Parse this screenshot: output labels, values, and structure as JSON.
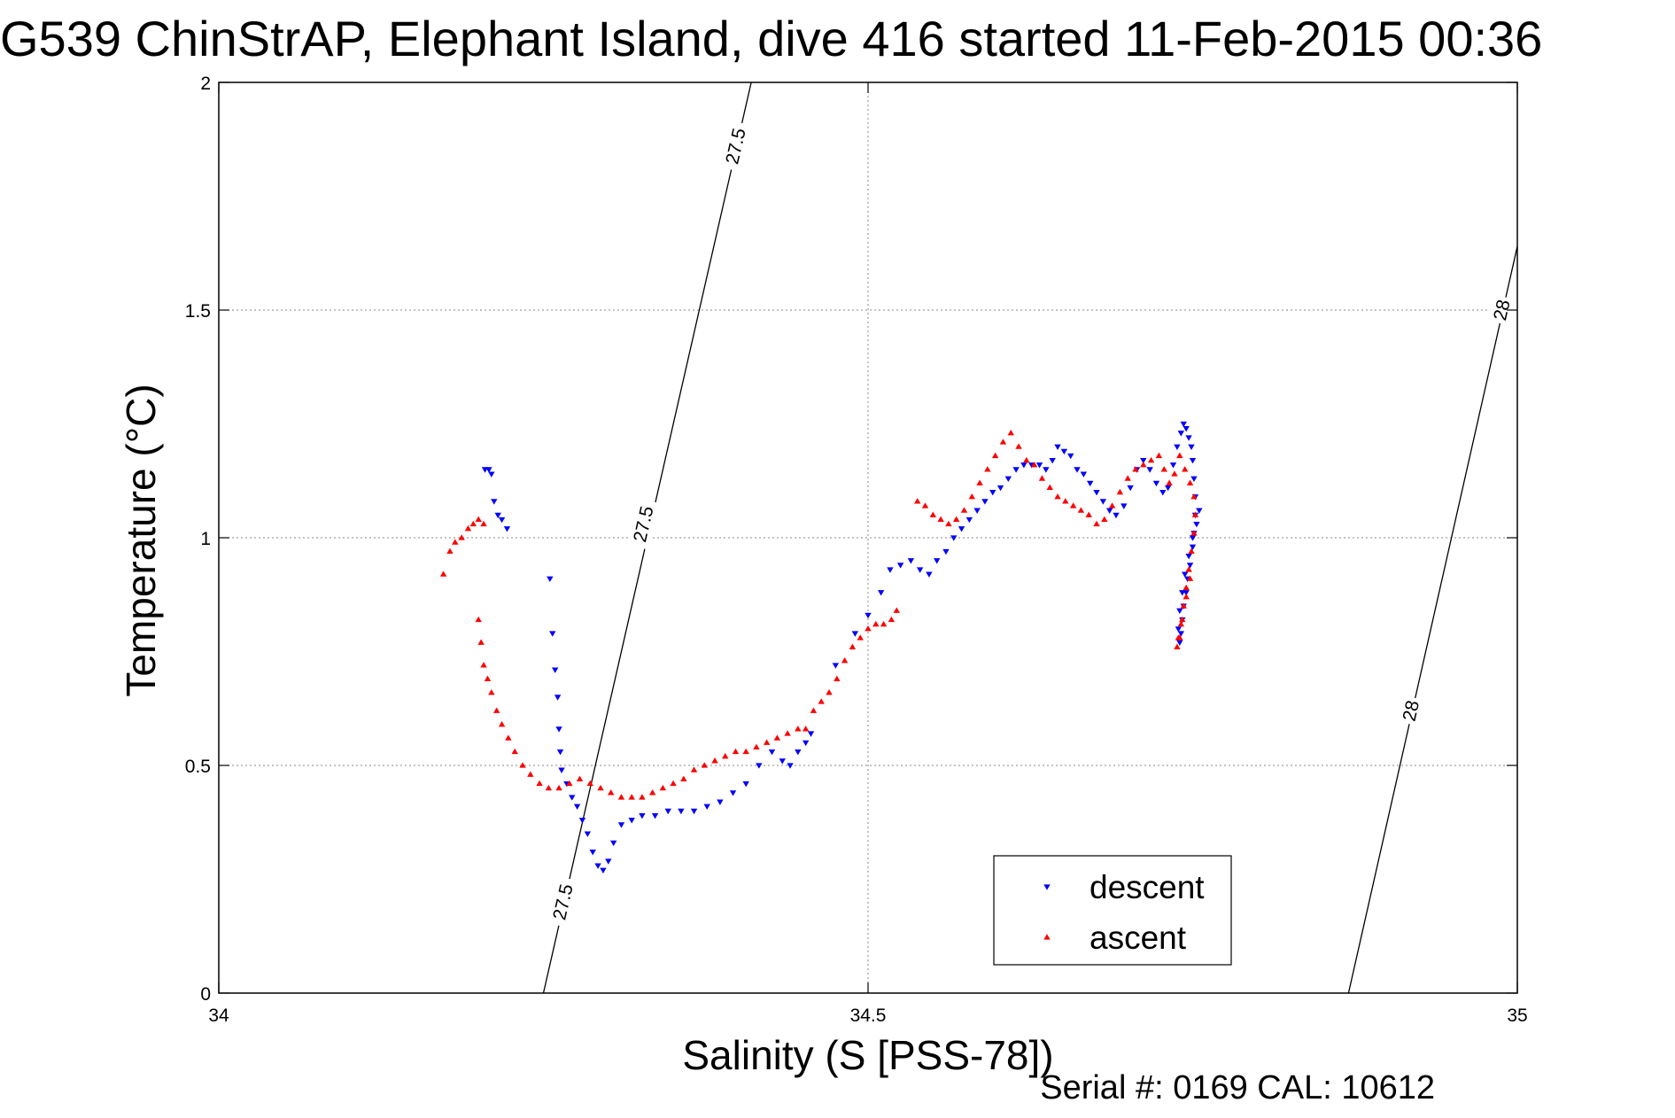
{
  "title": "G539 ChinStrAP, Elephant Island, dive 416 started 11-Feb-2015 00:36",
  "serial": "Serial #: 0169 CAL: 10612",
  "colors": {
    "descent": "#0000ff",
    "ascent": "#ff0000",
    "contour": "#000000"
  },
  "chart_data": {
    "type": "scatter",
    "title": "G539 ChinStrAP, Elephant Island, dive 416 started 11-Feb-2015 00:36",
    "xlabel": "Salinity (S [PSS-78])",
    "ylabel": "Temperature (°C)",
    "xlim": [
      34,
      35
    ],
    "ylim": [
      0,
      2
    ],
    "grid": true,
    "legend_position": "bottom-right",
    "x_ticks": [
      "34",
      "34.5",
      "35"
    ],
    "y_ticks": [
      "0",
      "0.5",
      "1",
      "1.5",
      "2"
    ],
    "contours": [
      {
        "label": "27.5",
        "points": [
          [
            34.25,
            0.0
          ],
          [
            34.41,
            2.0
          ]
        ]
      },
      {
        "label": "28",
        "points": [
          [
            34.87,
            0.0
          ],
          [
            35.0,
            1.64
          ]
        ]
      }
    ],
    "contour_labels": [
      {
        "text": "27.5",
        "s": 34.398,
        "t": 1.86
      },
      {
        "text": "27.5",
        "s": 34.327,
        "t": 1.03
      },
      {
        "text": "27.5",
        "s": 34.265,
        "t": 0.2
      },
      {
        "text": "28",
        "s": 34.988,
        "t": 1.5
      },
      {
        "text": "28",
        "s": 34.918,
        "t": 0.62
      }
    ],
    "series": [
      {
        "name": "descent",
        "marker": "triangle-down",
        "points": [
          [
            34.205,
            1.15
          ],
          [
            34.208,
            1.15
          ],
          [
            34.21,
            1.14
          ],
          [
            34.212,
            1.08
          ],
          [
            34.215,
            1.05
          ],
          [
            34.218,
            1.04
          ],
          [
            34.222,
            1.02
          ],
          [
            34.255,
            0.91
          ],
          [
            34.257,
            0.79
          ],
          [
            34.259,
            0.71
          ],
          [
            34.261,
            0.65
          ],
          [
            34.262,
            0.58
          ],
          [
            34.263,
            0.53
          ],
          [
            34.264,
            0.49
          ],
          [
            34.268,
            0.46
          ],
          [
            34.272,
            0.43
          ],
          [
            34.276,
            0.41
          ],
          [
            34.28,
            0.38
          ],
          [
            34.284,
            0.35
          ],
          [
            34.288,
            0.31
          ],
          [
            34.292,
            0.28
          ],
          [
            34.296,
            0.27
          ],
          [
            34.3,
            0.29
          ],
          [
            34.304,
            0.33
          ],
          [
            34.31,
            0.37
          ],
          [
            34.318,
            0.38
          ],
          [
            34.326,
            0.39
          ],
          [
            34.336,
            0.39
          ],
          [
            34.346,
            0.4
          ],
          [
            34.356,
            0.4
          ],
          [
            34.366,
            0.4
          ],
          [
            34.376,
            0.41
          ],
          [
            34.386,
            0.42
          ],
          [
            34.396,
            0.44
          ],
          [
            34.406,
            0.46
          ],
          [
            34.416,
            0.5
          ],
          [
            34.426,
            0.53
          ],
          [
            34.434,
            0.51
          ],
          [
            34.44,
            0.5
          ],
          [
            34.446,
            0.53
          ],
          [
            34.452,
            0.55
          ],
          [
            34.456,
            0.57
          ],
          [
            34.475,
            0.72
          ],
          [
            34.49,
            0.79
          ],
          [
            34.5,
            0.83
          ],
          [
            34.51,
            0.88
          ],
          [
            34.517,
            0.93
          ],
          [
            34.525,
            0.94
          ],
          [
            34.533,
            0.95
          ],
          [
            34.54,
            0.93
          ],
          [
            34.547,
            0.92
          ],
          [
            34.553,
            0.95
          ],
          [
            34.56,
            0.97
          ],
          [
            34.566,
            1.0
          ],
          [
            34.572,
            1.02
          ],
          [
            34.578,
            1.04
          ],
          [
            34.584,
            1.06
          ],
          [
            34.59,
            1.08
          ],
          [
            34.596,
            1.1
          ],
          [
            34.602,
            1.11
          ],
          [
            34.608,
            1.13
          ],
          [
            34.614,
            1.15
          ],
          [
            34.62,
            1.16
          ],
          [
            34.626,
            1.16
          ],
          [
            34.632,
            1.16
          ],
          [
            34.637,
            1.15
          ],
          [
            34.642,
            1.17
          ],
          [
            34.646,
            1.2
          ],
          [
            34.651,
            1.19
          ],
          [
            34.656,
            1.18
          ],
          [
            34.661,
            1.15
          ],
          [
            34.666,
            1.14
          ],
          [
            34.671,
            1.12
          ],
          [
            34.676,
            1.1
          ],
          [
            34.681,
            1.08
          ],
          [
            34.686,
            1.06
          ],
          [
            34.691,
            1.05
          ],
          [
            34.697,
            1.07
          ],
          [
            34.702,
            1.11
          ],
          [
            34.707,
            1.15
          ],
          [
            34.712,
            1.17
          ],
          [
            34.717,
            1.15
          ],
          [
            34.722,
            1.12
          ],
          [
            34.727,
            1.1
          ],
          [
            34.731,
            1.11
          ],
          [
            34.735,
            1.16
          ],
          [
            34.738,
            1.2
          ],
          [
            34.741,
            1.23
          ],
          [
            34.743,
            1.25
          ],
          [
            34.745,
            1.24
          ],
          [
            34.747,
            1.22
          ],
          [
            34.749,
            1.2
          ],
          [
            34.75,
            1.17
          ],
          [
            34.751,
            1.13
          ],
          [
            34.752,
            1.09
          ],
          [
            34.752,
            1.05
          ],
          [
            34.751,
            1.01
          ],
          [
            34.75,
            0.98
          ],
          [
            34.748,
            0.94
          ],
          [
            34.746,
            0.91
          ],
          [
            34.745,
            0.88
          ],
          [
            34.743,
            0.85
          ],
          [
            34.742,
            0.82
          ],
          [
            34.741,
            0.79
          ],
          [
            34.74,
            0.77
          ],
          [
            34.739,
            0.8
          ],
          [
            34.74,
            0.84
          ],
          [
            34.742,
            0.88
          ],
          [
            34.744,
            0.92
          ],
          [
            34.747,
            0.96
          ],
          [
            34.75,
            1.0
          ],
          [
            34.753,
            1.03
          ],
          [
            34.755,
            1.06
          ]
        ]
      },
      {
        "name": "ascent",
        "marker": "triangle-up",
        "points": [
          [
            34.178,
            0.97
          ],
          [
            34.182,
            0.99
          ],
          [
            34.187,
            1.0
          ],
          [
            34.192,
            1.02
          ],
          [
            34.196,
            1.03
          ],
          [
            34.2,
            1.04
          ],
          [
            34.204,
            1.03
          ],
          [
            34.173,
            0.92
          ],
          [
            34.2,
            0.82
          ],
          [
            34.202,
            0.77
          ],
          [
            34.204,
            0.72
          ],
          [
            34.207,
            0.69
          ],
          [
            34.21,
            0.66
          ],
          [
            34.214,
            0.62
          ],
          [
            34.218,
            0.59
          ],
          [
            34.223,
            0.56
          ],
          [
            34.228,
            0.53
          ],
          [
            34.234,
            0.5
          ],
          [
            34.24,
            0.48
          ],
          [
            34.247,
            0.46
          ],
          [
            34.254,
            0.45
          ],
          [
            34.262,
            0.45
          ],
          [
            34.27,
            0.46
          ],
          [
            34.278,
            0.47
          ],
          [
            34.286,
            0.46
          ],
          [
            34.294,
            0.45
          ],
          [
            34.302,
            0.44
          ],
          [
            34.31,
            0.43
          ],
          [
            34.318,
            0.43
          ],
          [
            34.326,
            0.43
          ],
          [
            34.334,
            0.44
          ],
          [
            34.342,
            0.45
          ],
          [
            34.35,
            0.46
          ],
          [
            34.358,
            0.47
          ],
          [
            34.366,
            0.49
          ],
          [
            34.374,
            0.5
          ],
          [
            34.382,
            0.51
          ],
          [
            34.39,
            0.52
          ],
          [
            34.398,
            0.53
          ],
          [
            34.406,
            0.53
          ],
          [
            34.414,
            0.54
          ],
          [
            34.422,
            0.55
          ],
          [
            34.43,
            0.56
          ],
          [
            34.438,
            0.57
          ],
          [
            34.446,
            0.58
          ],
          [
            34.452,
            0.58
          ],
          [
            34.458,
            0.62
          ],
          [
            34.464,
            0.64
          ],
          [
            34.47,
            0.66
          ],
          [
            34.476,
            0.69
          ],
          [
            34.482,
            0.73
          ],
          [
            34.488,
            0.76
          ],
          [
            34.494,
            0.78
          ],
          [
            34.5,
            0.8
          ],
          [
            34.506,
            0.81
          ],
          [
            34.512,
            0.81
          ],
          [
            34.518,
            0.82
          ],
          [
            34.522,
            0.84
          ],
          [
            34.538,
            1.08
          ],
          [
            34.544,
            1.07
          ],
          [
            34.55,
            1.05
          ],
          [
            34.556,
            1.04
          ],
          [
            34.562,
            1.03
          ],
          [
            34.568,
            1.04
          ],
          [
            34.574,
            1.06
          ],
          [
            34.58,
            1.09
          ],
          [
            34.586,
            1.12
          ],
          [
            34.592,
            1.15
          ],
          [
            34.598,
            1.18
          ],
          [
            34.604,
            1.21
          ],
          [
            34.61,
            1.23
          ],
          [
            34.616,
            1.2
          ],
          [
            34.622,
            1.17
          ],
          [
            34.628,
            1.16
          ],
          [
            34.634,
            1.13
          ],
          [
            34.64,
            1.11
          ],
          [
            34.646,
            1.09
          ],
          [
            34.652,
            1.08
          ],
          [
            34.658,
            1.07
          ],
          [
            34.664,
            1.06
          ],
          [
            34.67,
            1.05
          ],
          [
            34.676,
            1.03
          ],
          [
            34.682,
            1.04
          ],
          [
            34.688,
            1.07
          ],
          [
            34.694,
            1.1
          ],
          [
            34.7,
            1.13
          ],
          [
            34.706,
            1.15
          ],
          [
            34.712,
            1.16
          ],
          [
            34.718,
            1.17
          ],
          [
            34.724,
            1.18
          ],
          [
            34.728,
            1.15
          ],
          [
            34.732,
            1.12
          ],
          [
            34.736,
            1.14
          ],
          [
            34.74,
            1.18
          ],
          [
            34.744,
            1.15
          ],
          [
            34.748,
            1.12
          ],
          [
            34.751,
            1.09
          ],
          [
            34.752,
            1.05
          ],
          [
            34.751,
            1.01
          ],
          [
            34.749,
            0.97
          ],
          [
            34.747,
            0.93
          ],
          [
            34.745,
            0.89
          ],
          [
            34.743,
            0.85
          ],
          [
            34.741,
            0.81
          ],
          [
            34.739,
            0.78
          ],
          [
            34.738,
            0.76
          ],
          [
            34.74,
            0.78
          ],
          [
            34.742,
            0.82
          ],
          [
            34.745,
            0.87
          ],
          [
            34.748,
            0.91
          ]
        ]
      }
    ]
  }
}
